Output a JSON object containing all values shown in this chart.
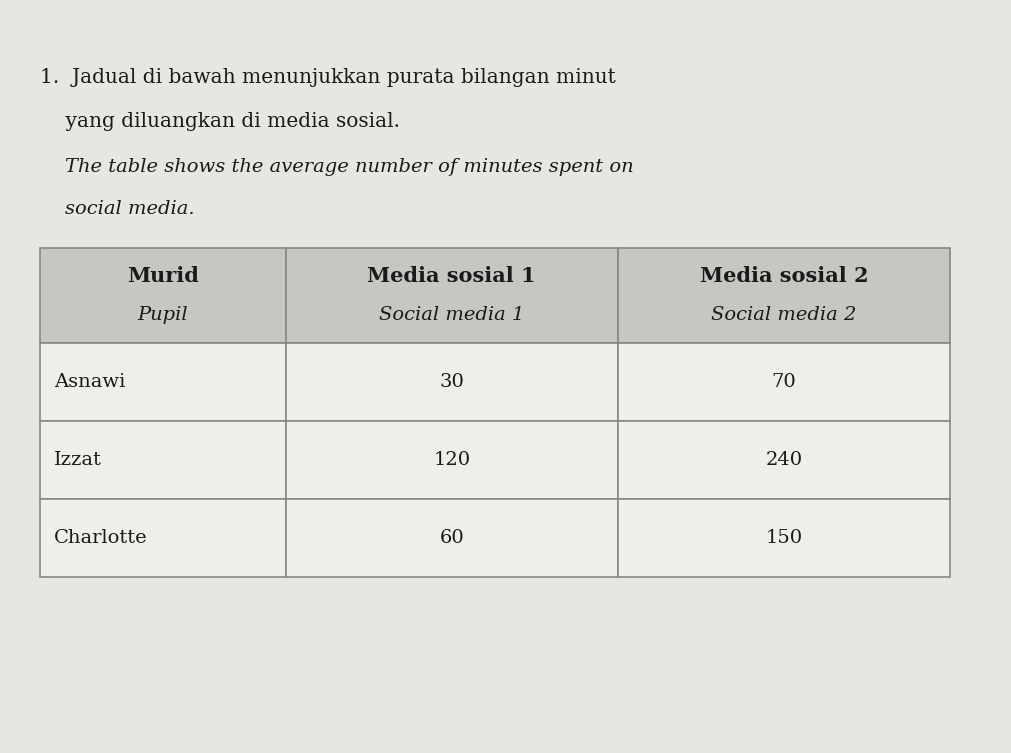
{
  "title_line1": "1.  Jadual di bawah menunjukkan purata bilangan minut",
  "title_line2": "    yang diluangkan di media sosial.",
  "subtitle_line1": "    The table shows the average number of minutes spent on",
  "subtitle_line2": "    social media.",
  "col_headers": [
    [
      "Murid",
      "Pupil"
    ],
    [
      "Media sosial 1",
      "Social media 1"
    ],
    [
      "Media sosial 2",
      "Social media 2"
    ]
  ],
  "rows": [
    [
      "Asnawi",
      "30",
      "70"
    ],
    [
      "Izzat",
      "120",
      "240"
    ],
    [
      "Charlotte",
      "60",
      "150"
    ]
  ],
  "page_bg": "#e8e6e2",
  "header_bg": "#c8c6c2",
  "cell_bg": "#f0eeea",
  "border_color": "#888880",
  "text_color": "#1a1a1a",
  "title_fontsize": 14.5,
  "subtitle_fontsize": 14,
  "table_fontsize": 14
}
